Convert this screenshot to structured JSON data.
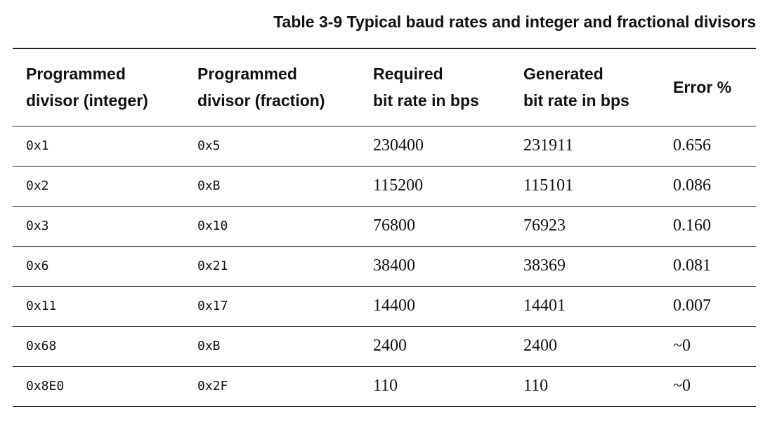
{
  "title": "Table 3-9 Typical baud rates and integer and fractional divisors",
  "table": {
    "headers": [
      [
        "Programmed",
        "divisor (integer)"
      ],
      [
        "Programmed",
        "divisor (fraction)"
      ],
      [
        "Required",
        "bit rate in bps"
      ],
      [
        "Generated",
        "bit rate in bps"
      ],
      [
        "Error %"
      ]
    ],
    "rows": [
      [
        "0x1",
        "0x5",
        "230400",
        "231911",
        "0.656"
      ],
      [
        "0x2",
        "0xB",
        "115200",
        "115101",
        "0.086"
      ],
      [
        "0x3",
        "0x10",
        "76800",
        "76923",
        "0.160"
      ],
      [
        "0x6",
        "0x21",
        "38400",
        "38369",
        "0.081"
      ],
      [
        "0x11",
        "0x17",
        "14400",
        "14401",
        "0.007"
      ],
      [
        "0x68",
        "0xB",
        "2400",
        "2400",
        "~0"
      ],
      [
        "0x8E0",
        "0x2F",
        "110",
        "110",
        "~0"
      ]
    ]
  }
}
